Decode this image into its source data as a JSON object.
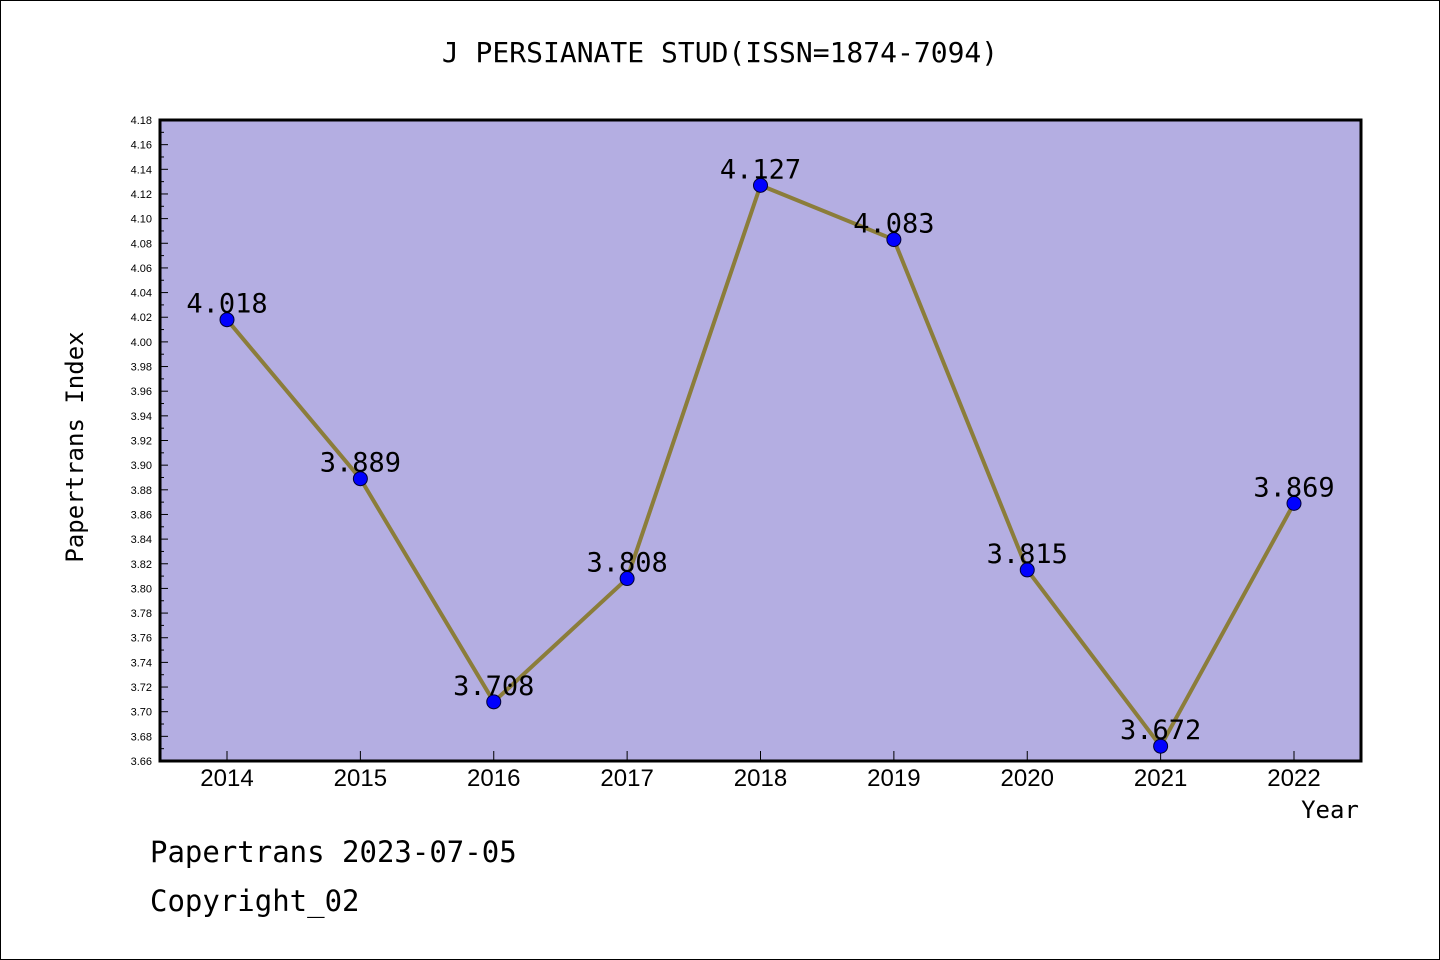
{
  "footer": {
    "date": "Papertrans 2023-07-05",
    "copyright": "Copyright_02"
  },
  "chart_data": {
    "type": "line",
    "title": "J PERSIANATE STUD(ISSN=1874-7094)",
    "xlabel": "Year",
    "ylabel": "Papertrans Index",
    "categories": [
      "2014",
      "2015",
      "2016",
      "2017",
      "2018",
      "2019",
      "2020",
      "2021",
      "2022"
    ],
    "series": [
      {
        "values": [
          4.018,
          3.889,
          3.708,
          3.808,
          4.127,
          4.083,
          3.815,
          3.672,
          3.869
        ],
        "labels": [
          "4.018",
          "3.889",
          "3.708",
          "3.808",
          "4.127",
          "4.083",
          "3.815",
          "3.672",
          "3.869"
        ],
        "line_color": "#8b7d3a",
        "marker_color": "#0000ff"
      }
    ],
    "ylim": [
      3.66,
      4.18
    ],
    "y_tick_step": 0.02,
    "y_tick_labels": [
      "3.66",
      "3.68",
      "3.70",
      "3.72",
      "3.74",
      "3.76",
      "3.78",
      "3.80",
      "3.82",
      "3.84",
      "3.86",
      "3.88",
      "3.90",
      "3.92",
      "3.94",
      "3.96",
      "3.98",
      "4.00",
      "4.02",
      "4.04",
      "4.06",
      "4.08",
      "4.10",
      "4.12",
      "4.14",
      "4.16",
      "4.18"
    ],
    "plot_background": "#b4aee2",
    "grid": false,
    "legend": "none"
  }
}
